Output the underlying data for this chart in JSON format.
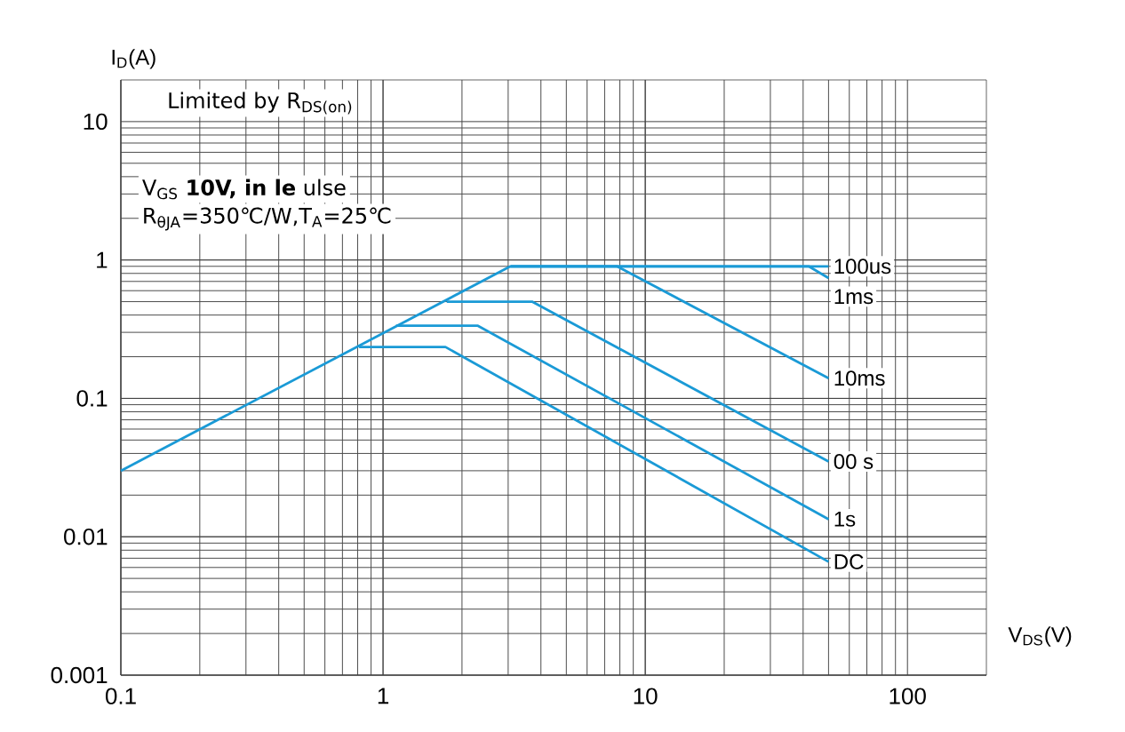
{
  "chart_data": {
    "type": "line",
    "xlabel": "V$_{DS}$(V)",
    "ylabel": "I$_{D}$(A)",
    "log": "xy",
    "grid": true,
    "legend": false,
    "marker": "none",
    "line_style": "solid",
    "xlim": [
      0.1,
      200
    ],
    "ylim": [
      0.001,
      20
    ],
    "xticks": [
      0.1,
      1,
      10,
      100
    ],
    "yticks": [
      0.001,
      0.01,
      0.1,
      1,
      10
    ],
    "annotations": [
      "Limited by R$_{DS(on)}$",
      "V$_{GS}$ **10V, in le** ulse",
      "R$_{θJA}$=350℃/W,T$_{A}$=25℃"
    ],
    "series": [
      {
        "color": "#1a9ad6",
        "x": [
          0.1,
          3.06
        ],
        "values": [
          0.03,
          0.9
        ]
      },
      {
        "name": "100us",
        "color": "#1a9ad6",
        "x": [
          3.06,
          50
        ],
        "values": [
          0.9,
          0.9
        ]
      },
      {
        "name": "1ms",
        "color": "#1a9ad6",
        "x": [
          3.06,
          42,
          50
        ],
        "values": [
          0.9,
          0.9,
          0.74
        ]
      },
      {
        "name": "10ms",
        "color": "#1a9ad6",
        "x": [
          3.06,
          7.8,
          50
        ],
        "values": [
          0.9,
          0.9,
          0.14
        ]
      },
      {
        "name": "00 s",
        "color": "#1a9ad6",
        "x": [
          1.75,
          3.7,
          50
        ],
        "values": [
          0.5,
          0.5,
          0.035
        ]
      },
      {
        "name": "1s",
        "color": "#1a9ad6",
        "x": [
          1.12,
          2.3,
          50
        ],
        "values": [
          0.335,
          0.335,
          0.0134
        ]
      },
      {
        "name": "DC",
        "color": "#1a9ad6",
        "x": [
          0.81,
          1.73,
          50
        ],
        "values": [
          0.235,
          0.235,
          0.0066
        ]
      }
    ]
  }
}
